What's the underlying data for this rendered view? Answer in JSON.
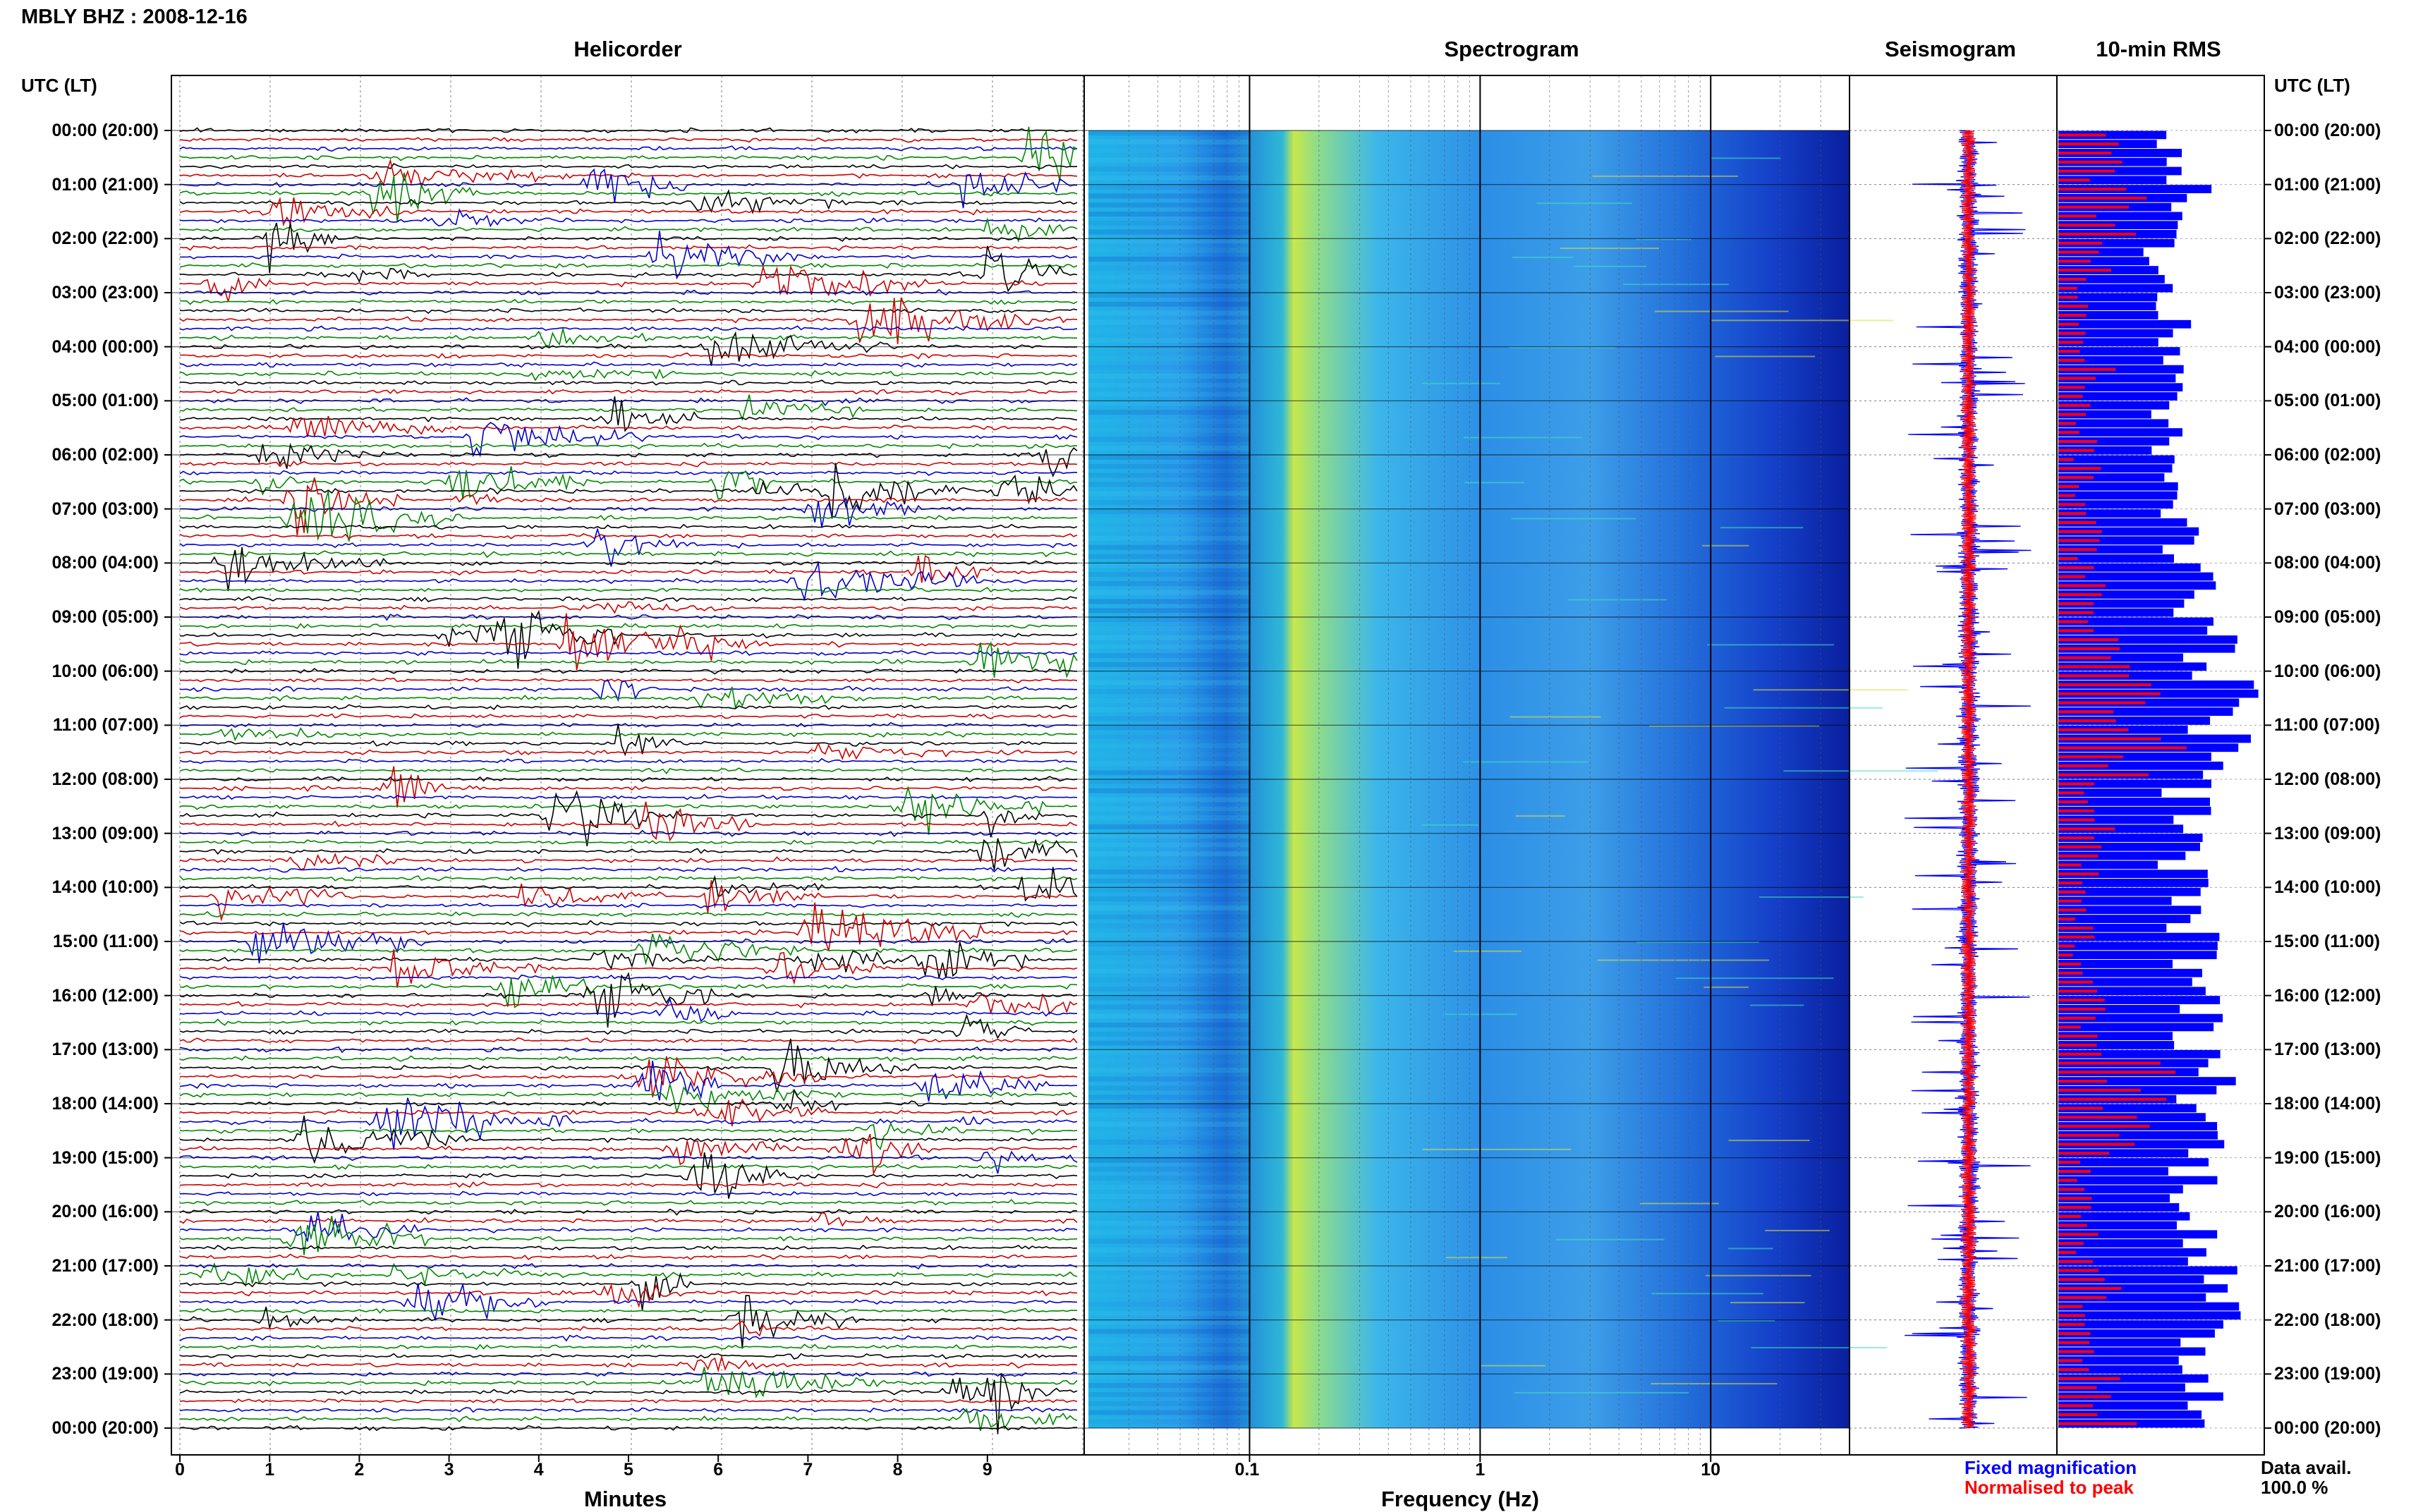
{
  "header": {
    "title": "MBLY BHZ : 2008-12-16"
  },
  "panels": {
    "helicorder": "Helicorder",
    "spectrogram": "Spectrogram",
    "seismogram": "Seismogram",
    "rms": "10-min RMS"
  },
  "axis": {
    "left_header": "UTC (LT)",
    "right_header": "UTC (LT)",
    "helicorder_xlabel": "Minutes",
    "spectrogram_xlabel": "Frequency (Hz)"
  },
  "legend": {
    "fixed": "Fixed magnification",
    "normalised": "Normalised to peak",
    "fixed_color": "#0000ff",
    "normalised_color": "#ff0000"
  },
  "availability": {
    "label": "Data avail.",
    "value": "100.0 %"
  },
  "colors": {
    "trace_cycle": [
      "#000000",
      "#cc0000",
      "#0000cc",
      "#008800"
    ]
  },
  "chart_data": {
    "type": "heatmap",
    "time_labels": [
      "00:00 (20:00)",
      "01:00 (21:00)",
      "02:00 (22:00)",
      "03:00 (23:00)",
      "04:00 (00:00)",
      "05:00 (01:00)",
      "06:00 (02:00)",
      "07:00 (03:00)",
      "08:00 (04:00)",
      "09:00 (05:00)",
      "10:00 (06:00)",
      "11:00 (07:00)",
      "12:00 (08:00)",
      "13:00 (09:00)",
      "14:00 (10:00)",
      "15:00 (11:00)",
      "16:00 (12:00)",
      "17:00 (13:00)",
      "18:00 (14:00)",
      "19:00 (15:00)",
      "20:00 (16:00)",
      "21:00 (17:00)",
      "22:00 (18:00)",
      "23:00 (19:00)",
      "00:00 (20:00)"
    ],
    "helicorder": {
      "x_ticks": [
        "0",
        "1",
        "2",
        "3",
        "4",
        "5",
        "6",
        "7",
        "8",
        "9"
      ],
      "xlim": [
        0,
        10
      ],
      "lines_per_hour": 6
    },
    "spectrogram": {
      "x_scale": "log",
      "x_ticks": [
        "0.1",
        "1",
        "10"
      ],
      "xlim": [
        0.02,
        40
      ],
      "colormap": "jet"
    },
    "rms": {
      "interval_minutes": 10,
      "series": [
        {
          "name": "Fixed magnification",
          "color": "#0000ff"
        },
        {
          "name": "Normalised to peak",
          "color": "#ff0000"
        }
      ],
      "blue_levels_per_hour": [
        0.55,
        0.62,
        0.52,
        0.58,
        0.6,
        0.5,
        0.62,
        0.56,
        0.7,
        0.74,
        0.8,
        0.78,
        0.62,
        0.6,
        0.64,
        0.66,
        0.68,
        0.72,
        0.7,
        0.66,
        0.7,
        0.72,
        0.68,
        0.72
      ],
      "red_levels_per_hour": [
        0.22,
        0.35,
        0.18,
        0.16,
        0.2,
        0.14,
        0.14,
        0.16,
        0.22,
        0.26,
        0.4,
        0.48,
        0.2,
        0.18,
        0.12,
        0.14,
        0.16,
        0.4,
        0.3,
        0.16,
        0.16,
        0.22,
        0.18,
        0.26
      ]
    }
  }
}
